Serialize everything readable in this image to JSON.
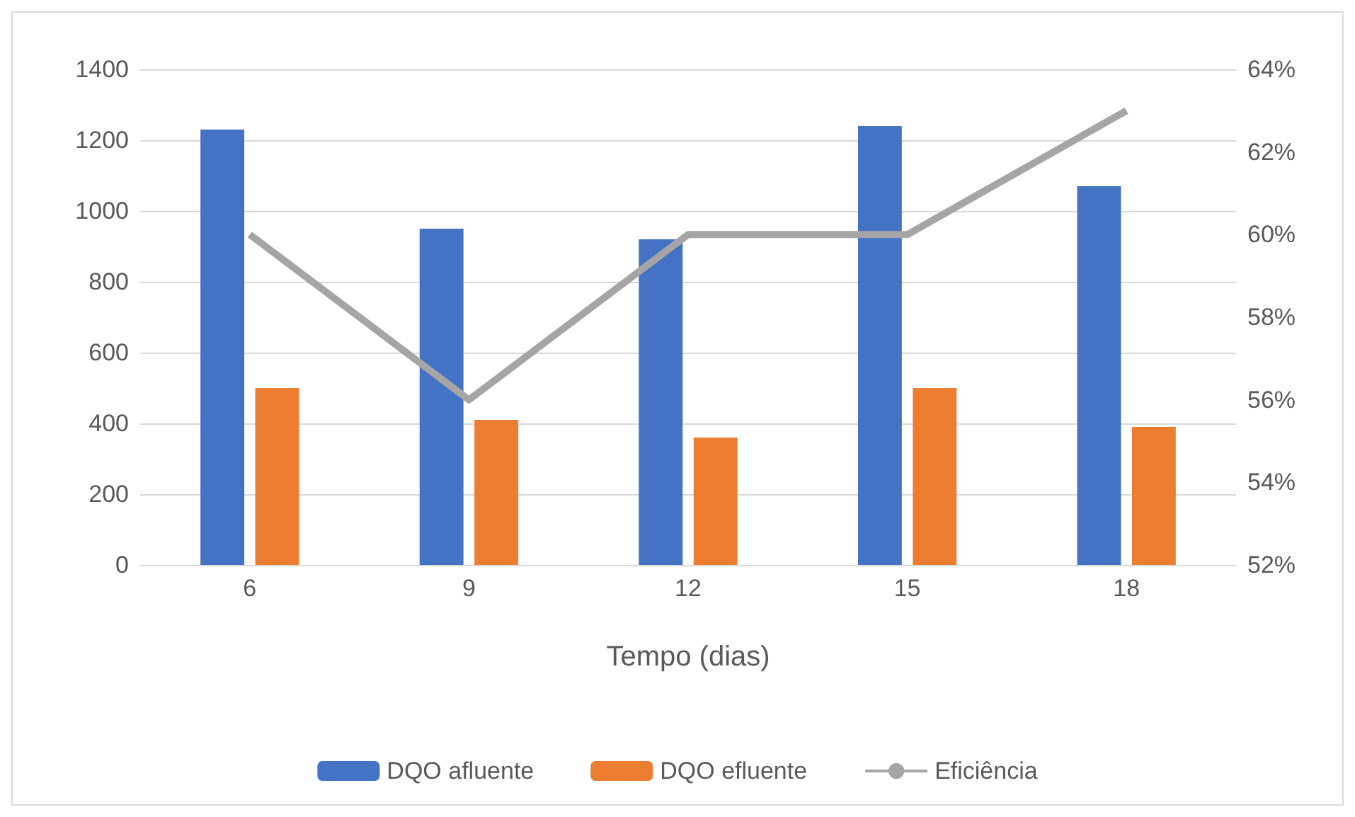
{
  "chart_data": {
    "type": "bar",
    "xlabel": "Tempo (dias)",
    "categories": [
      "6",
      "9",
      "12",
      "15",
      "18"
    ],
    "series": [
      {
        "name": "DQO afluente",
        "color": "#4472c4",
        "values": [
          1230,
          950,
          920,
          1240,
          1070
        ]
      },
      {
        "name": "DQO efluente",
        "color": "#ed7d31",
        "values": [
          500,
          410,
          360,
          500,
          390
        ]
      },
      {
        "name": "Eficiência",
        "type": "line",
        "axis": "y2",
        "color": "#a5a5a5",
        "values": [
          60,
          56,
          60,
          60,
          63
        ]
      }
    ],
    "ylim": [
      0,
      1400
    ],
    "yticks": [
      0,
      200,
      400,
      600,
      800,
      1000,
      1200,
      1400
    ],
    "y2lim": [
      52,
      64
    ],
    "y2ticks": [
      {
        "value": 52,
        "label": "52%"
      },
      {
        "value": 54,
        "label": "54%"
      },
      {
        "value": 56,
        "label": "56%"
      },
      {
        "value": 58,
        "label": "58%"
      },
      {
        "value": 60,
        "label": "60%"
      },
      {
        "value": 62,
        "label": "62%"
      },
      {
        "value": 64,
        "label": "64%"
      }
    ],
    "grid": "y",
    "legend": "bottom",
    "marker": "none"
  }
}
